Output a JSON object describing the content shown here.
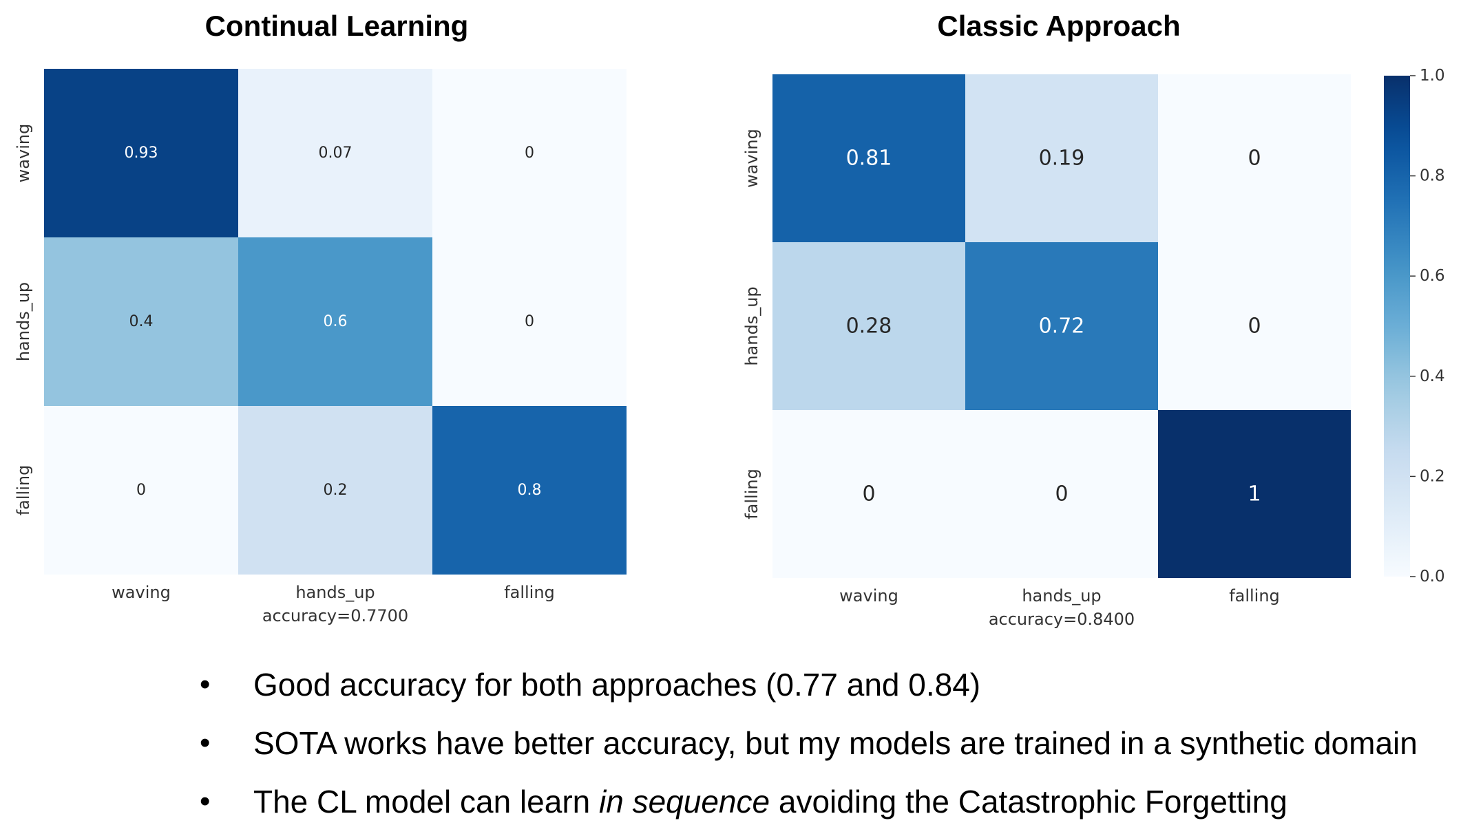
{
  "chart_data": [
    {
      "type": "heatmap",
      "title": "Continual Learning",
      "row_labels": [
        "waving",
        "hands_up",
        "falling"
      ],
      "col_labels": [
        "waving",
        "hands_up",
        "falling"
      ],
      "values": [
        [
          0.93,
          0.07,
          0
        ],
        [
          0.4,
          0.6,
          0
        ],
        [
          0,
          0.2,
          0.8
        ]
      ],
      "value_labels": [
        [
          "0.93",
          "0.07",
          "0"
        ],
        [
          "0.4",
          "0.6",
          "0"
        ],
        [
          "0",
          "0.2",
          "0.8"
        ]
      ],
      "xlabel": "accuracy=0.7700",
      "colormap": "Blues",
      "vmin": 0,
      "vmax": 1
    },
    {
      "type": "heatmap",
      "title": "Classic Approach",
      "row_labels": [
        "waving",
        "hands_up",
        "falling"
      ],
      "col_labels": [
        "waving",
        "hands_up",
        "falling"
      ],
      "values": [
        [
          0.81,
          0.19,
          0
        ],
        [
          0.28,
          0.72,
          0
        ],
        [
          0,
          0,
          1
        ]
      ],
      "value_labels": [
        [
          "0.81",
          "0.19",
          "0"
        ],
        [
          "0.28",
          "0.72",
          "0"
        ],
        [
          "0",
          "0",
          "1"
        ]
      ],
      "xlabel": "accuracy=0.8400",
      "colormap": "Blues",
      "vmin": 0,
      "vmax": 1,
      "colorbar": {
        "ticks": [
          "0.0",
          "0.2",
          "0.4",
          "0.6",
          "0.8",
          "1.0"
        ]
      }
    }
  ],
  "bullets": [
    {
      "parts": [
        {
          "text": "Good accuracy for both approaches (0.77 and 0.84)",
          "italic": false
        }
      ]
    },
    {
      "parts": [
        {
          "text": "SOTA works have better accuracy, but my models are trained in a synthetic domain",
          "italic": false
        }
      ]
    },
    {
      "parts": [
        {
          "text": "The CL model can learn ",
          "italic": false
        },
        {
          "text": "in sequence",
          "italic": true
        },
        {
          "text": " avoiding the Catastrophic Forgetting",
          "italic": false
        }
      ]
    }
  ],
  "bullet_symbol": "•"
}
